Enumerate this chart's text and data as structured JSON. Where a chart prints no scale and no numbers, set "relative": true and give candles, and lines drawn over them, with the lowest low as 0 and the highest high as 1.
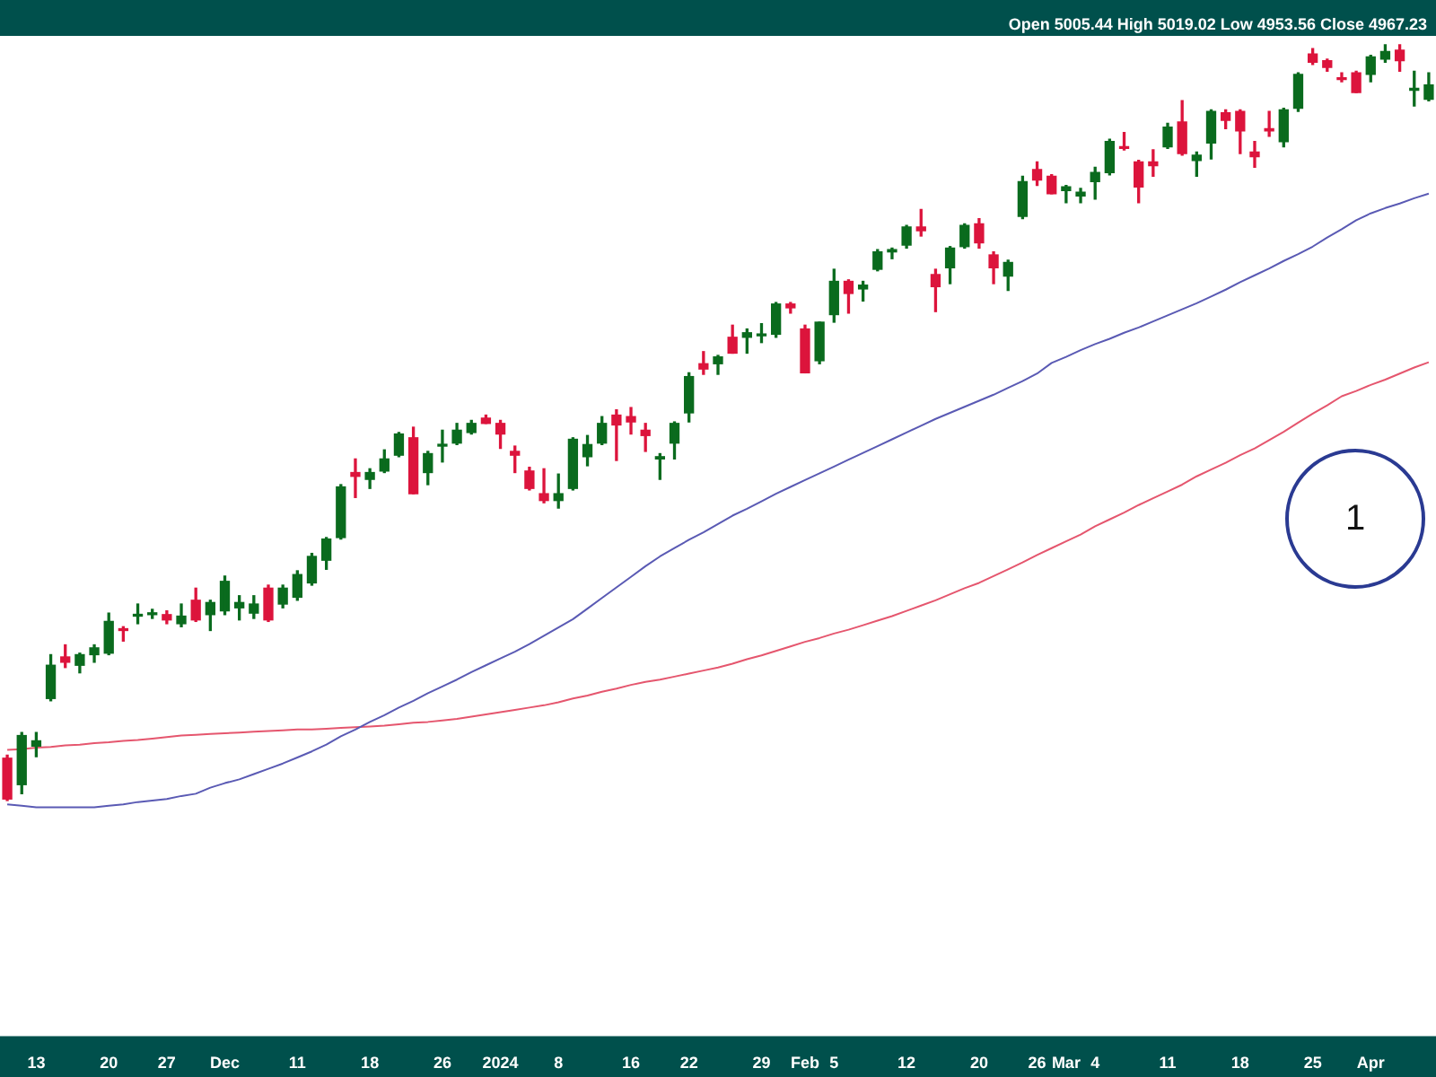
{
  "chart_data": {
    "type": "candlestick",
    "relative": true,
    "annotations": [
      "Open 5005.44 High 5019.02 Low 4953.56 Close 4967.23",
      "1"
    ],
    "categories": [
      null,
      null,
      "13",
      null,
      null,
      null,
      null,
      "20",
      null,
      null,
      null,
      "27",
      null,
      null,
      null,
      "Dec",
      null,
      null,
      null,
      null,
      "11",
      null,
      null,
      null,
      null,
      "18",
      null,
      null,
      null,
      null,
      "26",
      null,
      null,
      null,
      "2024",
      null,
      null,
      null,
      "8",
      null,
      null,
      null,
      null,
      "16",
      null,
      null,
      null,
      "22",
      null,
      null,
      null,
      null,
      "29",
      null,
      null,
      "Feb",
      null,
      "5",
      null,
      null,
      null,
      null,
      "12",
      null,
      null,
      null,
      null,
      "20",
      null,
      null,
      null,
      "26",
      null,
      "Mar",
      null,
      "4",
      null,
      null,
      null,
      null,
      "11",
      null,
      null,
      null,
      null,
      "18",
      null,
      null,
      null,
      null,
      "25",
      null,
      null,
      null,
      "Apr",
      null,
      null,
      null,
      null
    ],
    "ohlc": [
      [
        0.056,
        0.06,
        0,
        0.002
      ],
      [
        0.021,
        0.09,
        0.009,
        0.086
      ],
      [
        0.072,
        0.09,
        0.058,
        0.079
      ],
      [
        0.135,
        0.193,
        0.132,
        0.179
      ],
      [
        0.19,
        0.206,
        0.176,
        0.183
      ],
      [
        0.179,
        0.195,
        0.169,
        0.193
      ],
      [
        0.193,
        0.206,
        0.183,
        0.202
      ],
      [
        0.195,
        0.248,
        0.193,
        0.237
      ],
      [
        0.227,
        0.23,
        0.211,
        0.225
      ],
      [
        0.244,
        0.26,
        0.234,
        0.246
      ],
      [
        0.246,
        0.253,
        0.241,
        0.248
      ],
      [
        0.246,
        0.251,
        0.234,
        0.239
      ],
      [
        0.234,
        0.26,
        0.23,
        0.244
      ],
      [
        0.265,
        0.281,
        0.237,
        0.239
      ],
      [
        0.246,
        0.265,
        0.225,
        0.262
      ],
      [
        0.251,
        0.297,
        0.246,
        0.29
      ],
      [
        0.255,
        0.271,
        0.239,
        0.262
      ],
      [
        0.248,
        0.271,
        0.241,
        0.26
      ],
      [
        0.281,
        0.285,
        0.237,
        0.239
      ],
      [
        0.26,
        0.285,
        0.255,
        0.281
      ],
      [
        0.269,
        0.304,
        0.265,
        0.299
      ],
      [
        0.288,
        0.327,
        0.285,
        0.323
      ],
      [
        0.318,
        0.348,
        0.306,
        0.346
      ],
      [
        0.348,
        0.418,
        0.346,
        0.415
      ],
      [
        0.434,
        0.452,
        0.401,
        0.429
      ],
      [
        0.425,
        0.439,
        0.413,
        0.434
      ],
      [
        0.436,
        0.464,
        0.434,
        0.452
      ],
      [
        0.457,
        0.487,
        0.455,
        0.485
      ],
      [
        0.48,
        0.494,
        0.406,
        0.406
      ],
      [
        0.434,
        0.462,
        0.418,
        0.459
      ],
      [
        0.469,
        0.49,
        0.448,
        0.471
      ],
      [
        0.473,
        0.499,
        0.471,
        0.49
      ],
      [
        0.487,
        0.503,
        0.485,
        0.499
      ],
      [
        0.506,
        0.51,
        0.499,
        0.499
      ],
      [
        0.499,
        0.503,
        0.466,
        0.485
      ],
      [
        0.462,
        0.469,
        0.434,
        0.457
      ],
      [
        0.436,
        0.441,
        0.411,
        0.413
      ],
      [
        0.406,
        0.439,
        0.394,
        0.397
      ],
      [
        0.397,
        0.432,
        0.387,
        0.406
      ],
      [
        0.413,
        0.48,
        0.411,
        0.478
      ],
      [
        0.455,
        0.483,
        0.443,
        0.471
      ],
      [
        0.473,
        0.508,
        0.471,
        0.499
      ],
      [
        0.51,
        0.517,
        0.45,
        0.497
      ],
      [
        0.508,
        0.52,
        0.485,
        0.501
      ],
      [
        0.49,
        0.499,
        0.462,
        0.483
      ],
      [
        0.452,
        0.459,
        0.425,
        0.455
      ],
      [
        0.473,
        0.501,
        0.452,
        0.499
      ],
      [
        0.513,
        0.566,
        0.501,
        0.561
      ],
      [
        0.578,
        0.594,
        0.564,
        0.571
      ],
      [
        0.578,
        0.589,
        0.564,
        0.587
      ],
      [
        0.613,
        0.629,
        0.592,
        0.592
      ],
      [
        0.613,
        0.624,
        0.592,
        0.619
      ],
      [
        0.615,
        0.631,
        0.606,
        0.617
      ],
      [
        0.617,
        0.659,
        0.613,
        0.657
      ],
      [
        0.657,
        0.659,
        0.645,
        0.652
      ],
      [
        0.624,
        0.629,
        0.566,
        0.566
      ],
      [
        0.582,
        0.633,
        0.578,
        0.633
      ],
      [
        0.643,
        0.703,
        0.633,
        0.687
      ],
      [
        0.687,
        0.689,
        0.645,
        0.671
      ],
      [
        0.677,
        0.687,
        0.661,
        0.682
      ],
      [
        0.703,
        0.729,
        0.701,
        0.726
      ],
      [
        0.726,
        0.731,
        0.717,
        0.729
      ],
      [
        0.735,
        0.761,
        0.731,
        0.759
      ],
      [
        0.759,
        0.782,
        0.747,
        0.754
      ],
      [
        0.696,
        0.703,
        0.647,
        0.68
      ],
      [
        0.705,
        0.733,
        0.684,
        0.731
      ],
      [
        0.733,
        0.763,
        0.731,
        0.761
      ],
      [
        0.763,
        0.77,
        0.731,
        0.738
      ],
      [
        0.722,
        0.726,
        0.684,
        0.705
      ],
      [
        0.694,
        0.715,
        0.675,
        0.712
      ],
      [
        0.773,
        0.826,
        0.77,
        0.819
      ],
      [
        0.835,
        0.845,
        0.814,
        0.821
      ],
      [
        0.826,
        0.828,
        0.803,
        0.803
      ],
      [
        0.807,
        0.814,
        0.791,
        0.812
      ],
      [
        0.8,
        0.81,
        0.791,
        0.805
      ],
      [
        0.819,
        0.838,
        0.796,
        0.831
      ],
      [
        0.831,
        0.875,
        0.828,
        0.872
      ],
      [
        0.865,
        0.884,
        0.861,
        0.863
      ],
      [
        0.845,
        0.847,
        0.791,
        0.812
      ],
      [
        0.845,
        0.861,
        0.826,
        0.84
      ],
      [
        0.865,
        0.896,
        0.863,
        0.891
      ],
      [
        0.898,
        0.926,
        0.854,
        0.856
      ],
      [
        0.847,
        0.858,
        0.826,
        0.854
      ],
      [
        0.87,
        0.914,
        0.849,
        0.912
      ],
      [
        0.91,
        0.914,
        0.889,
        0.9
      ],
      [
        0.912,
        0.914,
        0.856,
        0.886
      ],
      [
        0.858,
        0.872,
        0.838,
        0.852
      ],
      [
        0.889,
        0.912,
        0.879,
        0.886
      ],
      [
        0.872,
        0.916,
        0.865,
        0.914
      ],
      [
        0.916,
        0.963,
        0.912,
        0.961
      ],
      [
        0.988,
        0.995,
        0.974,
        0.977
      ],
      [
        0.979,
        0.981,
        0.965,
        0.97
      ],
      [
        0.956,
        0.963,
        0.951,
        0.954
      ],
      [
        0.963,
        0.965,
        0.937,
        0.937
      ],
      [
        0.961,
        0.986,
        0.951,
        0.984
      ],
      [
        0.981,
        1,
        0.977,
        0.991
      ],
      [
        0.993,
        1,
        0.965,
        0.979
      ],
      [
        0.94,
        0.965,
        0.919,
        0.942
      ],
      [
        0.928,
        0.963,
        0.926,
        0.947
      ]
    ],
    "series": [
      {
        "type": "line",
        "color": "#5a5ab4",
        "values": [
          -0.005,
          -0.007,
          -0.009,
          -0.009,
          -0.009,
          -0.009,
          -0.009,
          -0.007,
          -0.005,
          -0.002,
          0,
          0.002,
          0.006,
          0.009,
          0.017,
          0.023,
          0.028,
          0.035,
          0.042,
          0.049,
          0.057,
          0.065,
          0.074,
          0.085,
          0.094,
          0.104,
          0.113,
          0.123,
          0.132,
          0.142,
          0.151,
          0.16,
          0.17,
          0.179,
          0.188,
          0.197,
          0.207,
          0.218,
          0.229,
          0.24,
          0.254,
          0.268,
          0.282,
          0.296,
          0.31,
          0.323,
          0.334,
          0.345,
          0.355,
          0.366,
          0.377,
          0.386,
          0.396,
          0.406,
          0.415,
          0.424,
          0.433,
          0.442,
          0.451,
          0.46,
          0.469,
          0.478,
          0.487,
          0.496,
          0.505,
          0.513,
          0.521,
          0.529,
          0.537,
          0.546,
          0.555,
          0.565,
          0.579,
          0.587,
          0.596,
          0.604,
          0.611,
          0.619,
          0.626,
          0.634,
          0.642,
          0.65,
          0.658,
          0.667,
          0.676,
          0.686,
          0.695,
          0.704,
          0.714,
          0.723,
          0.733,
          0.745,
          0.756,
          0.768,
          0.777,
          0.784,
          0.79,
          0.797,
          0.803
        ]
      },
      {
        "type": "line",
        "color": "#e5566e",
        "values": [
          0.067,
          0.068,
          0.07,
          0.071,
          0.073,
          0.074,
          0.076,
          0.077,
          0.079,
          0.08,
          0.082,
          0.084,
          0.086,
          0.087,
          0.088,
          0.089,
          0.09,
          0.091,
          0.092,
          0.093,
          0.094,
          0.094,
          0.095,
          0.096,
          0.097,
          0.098,
          0.099,
          0.101,
          0.103,
          0.104,
          0.106,
          0.108,
          0.111,
          0.114,
          0.117,
          0.12,
          0.123,
          0.126,
          0.13,
          0.135,
          0.139,
          0.144,
          0.148,
          0.153,
          0.157,
          0.16,
          0.164,
          0.168,
          0.172,
          0.176,
          0.181,
          0.187,
          0.192,
          0.198,
          0.204,
          0.21,
          0.215,
          0.221,
          0.226,
          0.232,
          0.238,
          0.244,
          0.251,
          0.258,
          0.265,
          0.273,
          0.281,
          0.288,
          0.297,
          0.306,
          0.315,
          0.325,
          0.334,
          0.343,
          0.352,
          0.363,
          0.372,
          0.381,
          0.391,
          0.4,
          0.409,
          0.418,
          0.429,
          0.438,
          0.447,
          0.457,
          0.466,
          0.477,
          0.488,
          0.5,
          0.512,
          0.523,
          0.535,
          0.542,
          0.55,
          0.557,
          0.565,
          0.573,
          0.58
        ]
      }
    ]
  }
}
